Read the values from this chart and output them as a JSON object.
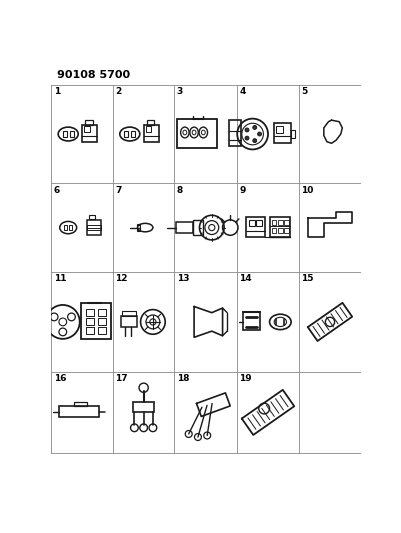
{
  "title": "90108 5700",
  "bg_color": "#ffffff",
  "grid_color": "#888888",
  "text_color": "#000000",
  "figsize": [
    4.02,
    5.33
  ],
  "dpi": 100,
  "title_fontsize": 8,
  "label_fontsize": 6.5,
  "lw": 0.9,
  "lc": "#1a1a1a"
}
